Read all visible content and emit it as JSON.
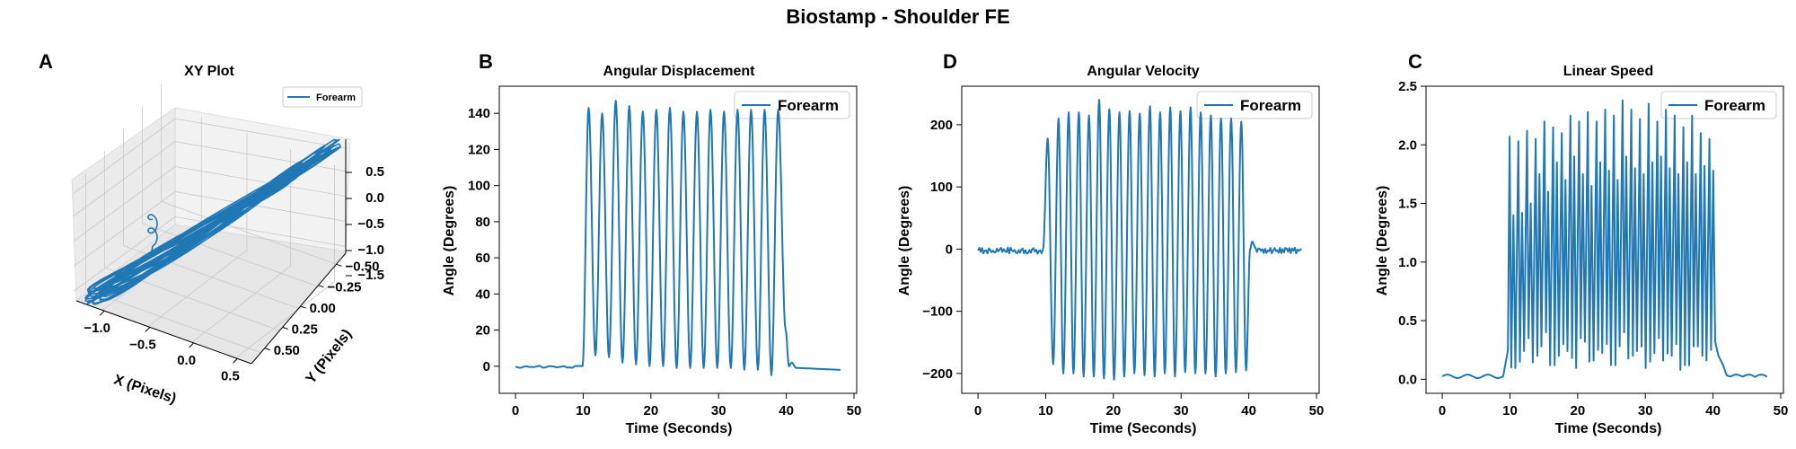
{
  "figure": {
    "title": "Biostamp - Shoulder FE"
  },
  "colors": {
    "series": "#1f77b4",
    "pane": "#f2f2f2",
    "pane_dark": "#e6e6e6",
    "grid": "#c8c8c8"
  },
  "panels": {
    "A": {
      "label": "A",
      "title": "XY Plot",
      "legend": "Forearm",
      "xlabel": "X (Pixels)",
      "ylabel": "Y (Pixels)",
      "xticks": [
        "−1.0",
        "−0.5",
        "0.0",
        "0.5"
      ],
      "yticks": [
        "−0.50",
        "−0.25",
        "0.00",
        "0.25",
        "0.50"
      ],
      "zticks": [
        "0.5",
        "0.0",
        "−0.5",
        "−1.0",
        "−1.5"
      ]
    },
    "B": {
      "label": "B",
      "title": "Angular Displacement",
      "legend": "Forearm",
      "xlabel": "Time (Seconds)",
      "ylabel": "Angle (Degrees)",
      "xticks": [
        "0",
        "10",
        "20",
        "30",
        "40",
        "50"
      ],
      "yticks": [
        "0",
        "20",
        "40",
        "60",
        "80",
        "100",
        "120",
        "140"
      ]
    },
    "D": {
      "label": "D",
      "title": "Angular Velocity",
      "legend": "Forearm",
      "xlabel": "Time (Seconds)",
      "ylabel": "Angle (Degrees)",
      "xticks": [
        "0",
        "10",
        "20",
        "30",
        "40",
        "50"
      ],
      "yticks": [
        "−200",
        "−100",
        "0",
        "100",
        "200"
      ]
    },
    "C": {
      "label": "C",
      "title": "Linear Speed",
      "legend": "Forearm",
      "xlabel": "Time (Seconds)",
      "ylabel": "Angle (Degrees)",
      "xticks": [
        "0",
        "10",
        "20",
        "30",
        "40",
        "50"
      ],
      "yticks": [
        "0.0",
        "0.5",
        "1.0",
        "1.5",
        "2.0",
        "2.5"
      ]
    }
  },
  "chart_data": [
    {
      "panel": "A",
      "type": "line",
      "projection": "3d",
      "title": "XY Plot",
      "xlabel": "X (Pixels)",
      "ylabel": "Y (Pixels)",
      "xlim": [
        -1.3,
        0.8
      ],
      "ylim": [
        -0.55,
        0.6
      ],
      "zlim": [
        -1.6,
        0.8
      ],
      "series": [
        {
          "name": "Forearm",
          "description": "dense looping trajectory rising from lower-left (x≈-1.2) to upper-right (x≈0.6)"
        }
      ],
      "legend": "top-right"
    },
    {
      "panel": "B",
      "type": "line",
      "title": "Angular Displacement",
      "xlabel": "Time (Seconds)",
      "ylabel": "Angle (Degrees)",
      "xlim": [
        -2.4,
        50.4
      ],
      "ylim": [
        -15,
        155
      ],
      "series": [
        {
          "name": "Forearm",
          "peaks": [
            {
              "t": 10.8,
              "v": 143
            },
            {
              "t": 12.8,
              "v": 140
            },
            {
              "t": 14.8,
              "v": 147
            },
            {
              "t": 16.8,
              "v": 144
            },
            {
              "t": 18.8,
              "v": 141
            },
            {
              "t": 20.8,
              "v": 142
            },
            {
              "t": 22.8,
              "v": 143
            },
            {
              "t": 24.8,
              "v": 141
            },
            {
              "t": 26.8,
              "v": 141
            },
            {
              "t": 28.8,
              "v": 142
            },
            {
              "t": 30.8,
              "v": 141
            },
            {
              "t": 32.8,
              "v": 142
            },
            {
              "t": 34.8,
              "v": 142
            },
            {
              "t": 36.8,
              "v": 142
            },
            {
              "t": 38.8,
              "v": 142
            }
          ],
          "troughs": [
            {
              "t": 11.8,
              "v": 6
            },
            {
              "t": 13.8,
              "v": 5
            },
            {
              "t": 15.8,
              "v": 2
            },
            {
              "t": 17.8,
              "v": 1
            },
            {
              "t": 19.8,
              "v": 0
            },
            {
              "t": 21.8,
              "v": 0
            },
            {
              "t": 23.8,
              "v": -1
            },
            {
              "t": 25.8,
              "v": -1
            },
            {
              "t": 27.8,
              "v": -1
            },
            {
              "t": 29.8,
              "v": -1
            },
            {
              "t": 31.8,
              "v": -1
            },
            {
              "t": 33.8,
              "v": -2
            },
            {
              "t": 35.8,
              "v": -2
            },
            {
              "t": 37.8,
              "v": -5
            }
          ],
          "baseline_start": {
            "t_end": 9.7,
            "v": 0
          },
          "baseline_end": {
            "t_start": 40.5,
            "v": -2,
            "t_end": 48
          }
        }
      ],
      "legend": "top-right"
    },
    {
      "panel": "D",
      "type": "line",
      "title": "Angular Velocity",
      "xlabel": "Time (Seconds)",
      "ylabel": "Angle (Degrees)",
      "xlim": [
        -2.4,
        50.4
      ],
      "ylim": [
        -232,
        262
      ],
      "series": [
        {
          "name": "Forearm",
          "peaks": [
            {
              "t": 10.3,
              "v": 178
            },
            {
              "t": 11.9,
              "v": 210
            },
            {
              "t": 13.4,
              "v": 220
            },
            {
              "t": 14.9,
              "v": 220
            },
            {
              "t": 16.4,
              "v": 215
            },
            {
              "t": 17.9,
              "v": 240
            },
            {
              "t": 19.4,
              "v": 225
            },
            {
              "t": 20.9,
              "v": 220
            },
            {
              "t": 22.4,
              "v": 222
            },
            {
              "t": 23.9,
              "v": 218
            },
            {
              "t": 25.4,
              "v": 230
            },
            {
              "t": 26.9,
              "v": 220
            },
            {
              "t": 28.4,
              "v": 228
            },
            {
              "t": 29.9,
              "v": 222
            },
            {
              "t": 31.4,
              "v": 228
            },
            {
              "t": 32.9,
              "v": 220
            },
            {
              "t": 34.4,
              "v": 215
            },
            {
              "t": 35.9,
              "v": 210
            },
            {
              "t": 37.4,
              "v": 210
            },
            {
              "t": 38.9,
              "v": 205
            }
          ],
          "troughs": [
            {
              "t": 11.1,
              "v": -185
            },
            {
              "t": 12.6,
              "v": -200
            },
            {
              "t": 14.1,
              "v": -200
            },
            {
              "t": 15.6,
              "v": -205
            },
            {
              "t": 17.1,
              "v": -205
            },
            {
              "t": 18.6,
              "v": -208
            },
            {
              "t": 20.1,
              "v": -210
            },
            {
              "t": 21.6,
              "v": -205
            },
            {
              "t": 23.1,
              "v": -200
            },
            {
              "t": 24.6,
              "v": -203
            },
            {
              "t": 26.1,
              "v": -205
            },
            {
              "t": 27.6,
              "v": -200
            },
            {
              "t": 29.1,
              "v": -205
            },
            {
              "t": 30.6,
              "v": -198
            },
            {
              "t": 32.1,
              "v": -200
            },
            {
              "t": 33.6,
              "v": -200
            },
            {
              "t": 35.1,
              "v": -205
            },
            {
              "t": 36.6,
              "v": -200
            },
            {
              "t": 38.1,
              "v": -198
            },
            {
              "t": 39.6,
              "v": -195
            }
          ],
          "baseline_start": {
            "t_end": 9.5,
            "v": 0
          },
          "post_spike": {
            "t": 40.5,
            "v": 12
          },
          "baseline_end": {
            "t_end": 48,
            "v": 0
          }
        }
      ],
      "legend": "top-right"
    },
    {
      "panel": "C",
      "type": "line",
      "title": "Linear Speed",
      "xlabel": "Time (Seconds)",
      "ylabel": "Angle (Degrees)",
      "xlim": [
        -2.4,
        50.4
      ],
      "ylim": [
        -0.12,
        2.5
      ],
      "series": [
        {
          "name": "Forearm",
          "peaks_high": [
            2.07,
            2.03,
            2.12,
            2.05,
            2.2,
            2.15,
            2.1,
            2.25,
            2.2,
            2.28,
            2.2,
            2.3,
            2.25,
            2.38,
            2.3,
            2.22,
            2.35,
            2.2,
            2.3,
            2.25,
            2.15,
            2.25,
            2.1,
            2.05
          ],
          "peaks_low": [
            1.4,
            1.42,
            1.5,
            1.75,
            1.6,
            1.85,
            1.7,
            1.9,
            1.75,
            1.65,
            1.85,
            1.78,
            1.7,
            1.9,
            1.8,
            1.75,
            1.85,
            1.9,
            1.8,
            1.75,
            1.85,
            1.75,
            1.82,
            1.78
          ],
          "troughs": [
            0.1,
            0.15,
            0.35,
            0.2,
            0.4,
            0.12,
            0.3,
            0.18,
            0.35,
            0.15,
            0.25,
            0.3,
            0.12,
            0.4,
            0.2,
            0.28,
            0.15,
            0.35,
            0.22,
            0.3,
            0.12,
            0.28,
            0.2,
            0.25
          ],
          "active_range": [
            9.8,
            40.6
          ],
          "baseline_level": 0.02
        }
      ],
      "legend": "top-right"
    }
  ]
}
